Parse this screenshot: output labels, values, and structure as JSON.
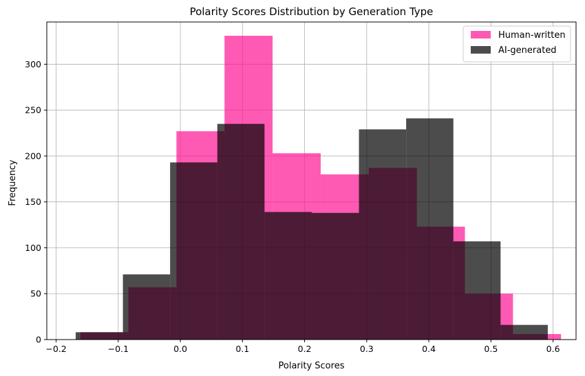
{
  "chart_data": {
    "type": "bar",
    "title": "Polarity Scores Distribution by Generation Type",
    "xlabel": "Polarity Scores",
    "ylabel": "Frequency",
    "xlim": [
      -0.215,
      0.637
    ],
    "ylim": [
      0,
      346
    ],
    "xticks": [
      -0.2,
      -0.1,
      0.0,
      0.1,
      0.2,
      0.3,
      0.4,
      0.5,
      0.6
    ],
    "xtick_labels": [
      "−0.2",
      "−0.1",
      "0.0",
      "0.1",
      "0.2",
      "0.3",
      "0.4",
      "0.5",
      "0.6"
    ],
    "yticks": [
      0,
      50,
      100,
      150,
      200,
      250,
      300
    ],
    "grid": true,
    "legend_position": "top-right",
    "series": [
      {
        "name": "Human-written",
        "color": "#ff1493",
        "alpha": 0.7,
        "bins": [
          {
            "x0": -0.161,
            "x1": -0.0837,
            "count": 8
          },
          {
            "x0": -0.0837,
            "x1": -0.0063,
            "count": 57
          },
          {
            "x0": -0.0063,
            "x1": 0.0711,
            "count": 227
          },
          {
            "x0": 0.0711,
            "x1": 0.1485,
            "count": 331
          },
          {
            "x0": 0.1485,
            "x1": 0.2259,
            "count": 203
          },
          {
            "x0": 0.2259,
            "x1": 0.3033,
            "count": 180
          },
          {
            "x0": 0.3033,
            "x1": 0.3807,
            "count": 187
          },
          {
            "x0": 0.3807,
            "x1": 0.4581,
            "count": 123
          },
          {
            "x0": 0.4581,
            "x1": 0.5355,
            "count": 50
          },
          {
            "x0": 0.5355,
            "x1": 0.6129,
            "count": 6
          }
        ]
      },
      {
        "name": "AI-generated",
        "color": "#000000",
        "alpha": 0.7,
        "bins": [
          {
            "x0": -0.1685,
            "x1": -0.0925,
            "count": 8
          },
          {
            "x0": -0.0925,
            "x1": -0.0165,
            "count": 71
          },
          {
            "x0": -0.0165,
            "x1": 0.0595,
            "count": 193
          },
          {
            "x0": 0.0595,
            "x1": 0.1355,
            "count": 235
          },
          {
            "x0": 0.1355,
            "x1": 0.2115,
            "count": 139
          },
          {
            "x0": 0.2115,
            "x1": 0.2875,
            "count": 138
          },
          {
            "x0": 0.2875,
            "x1": 0.3635,
            "count": 229
          },
          {
            "x0": 0.3635,
            "x1": 0.4395,
            "count": 241
          },
          {
            "x0": 0.4395,
            "x1": 0.5155,
            "count": 107
          },
          {
            "x0": 0.5155,
            "x1": 0.5915,
            "count": 16
          }
        ]
      }
    ]
  }
}
